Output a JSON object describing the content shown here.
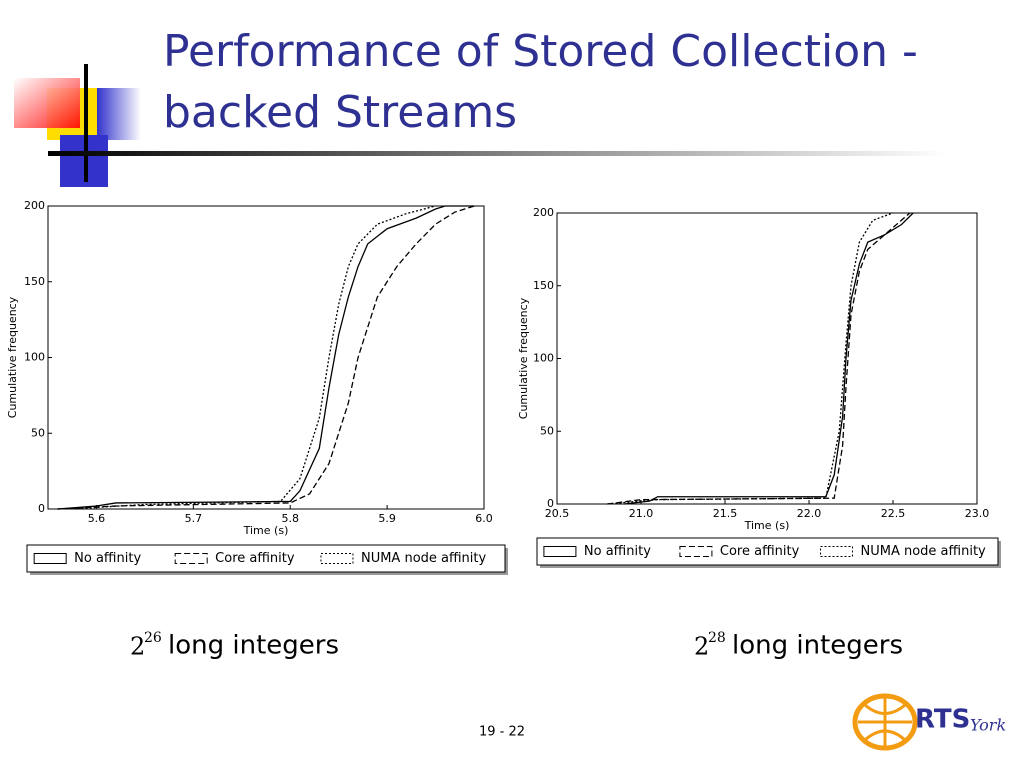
{
  "slide": {
    "title_lines": [
      "Performance of Stored Collection -",
      "backed Streams"
    ],
    "captions": [
      {
        "base": "2",
        "exponent": "26",
        "text": "long integers"
      },
      {
        "base": "2",
        "exponent": "28",
        "text": "long integers"
      }
    ],
    "page_number": "19 - 22",
    "logo": {
      "main": "RTS",
      "sub": "York"
    }
  },
  "chart_data": [
    {
      "type": "line",
      "xlabel": "Time (s)",
      "ylabel": "Cumulative frequency",
      "xlim": [
        5.55,
        6.0
      ],
      "ylim": [
        0,
        200
      ],
      "xticks": [
        5.6,
        5.7,
        5.8,
        5.9,
        {
          "value": 6.0,
          "label": "6.0"
        }
      ],
      "yticks": [
        0,
        50,
        100,
        150,
        200
      ],
      "grid": false,
      "legend": "bottom",
      "series": [
        {
          "name": "No affinity",
          "color": "#000000",
          "dash": "solid",
          "x": [
            5.56,
            5.6,
            5.62,
            5.8,
            5.81,
            5.83,
            5.84,
            5.85,
            5.86,
            5.87,
            5.88,
            5.9,
            5.93,
            5.95,
            5.96,
            5.99
          ],
          "values": [
            0,
            2,
            4,
            5,
            12,
            40,
            80,
            115,
            140,
            160,
            175,
            185,
            192,
            198,
            200,
            200
          ]
        },
        {
          "name": "Core affinity",
          "color": "#000000",
          "dash": "dashed",
          "x": [
            5.56,
            5.62,
            5.8,
            5.82,
            5.84,
            5.86,
            5.87,
            5.89,
            5.91,
            5.93,
            5.95,
            5.97,
            5.99
          ],
          "values": [
            0,
            2,
            4,
            10,
            30,
            70,
            100,
            140,
            160,
            175,
            188,
            196,
            200
          ]
        },
        {
          "name": "NUMA node affinity",
          "color": "#000000",
          "dash": "dotted",
          "x": [
            5.56,
            5.6,
            5.65,
            5.79,
            5.81,
            5.83,
            5.84,
            5.85,
            5.86,
            5.87,
            5.89,
            5.92,
            5.95
          ],
          "values": [
            0,
            1,
            3,
            5,
            20,
            60,
            100,
            135,
            160,
            175,
            188,
            195,
            200
          ]
        }
      ]
    },
    {
      "type": "line",
      "xlabel": "Time (s)",
      "ylabel": "Cumulative frequency",
      "xlim": [
        20.5,
        23.0
      ],
      "ylim": [
        0,
        200
      ],
      "xticks": [
        20.5,
        {
          "value": 21.0,
          "label": "21.0"
        },
        21.5,
        {
          "value": 22.0,
          "label": "22.0"
        },
        22.5,
        {
          "value": 23.0,
          "label": "23.0"
        }
      ],
      "yticks": [
        0,
        50,
        100,
        150,
        200
      ],
      "grid": false,
      "legend": "bottom",
      "series": [
        {
          "name": "No affinity",
          "color": "#000000",
          "dash": "solid",
          "x": [
            20.9,
            21.05,
            21.1,
            22.1,
            22.15,
            22.2,
            22.22,
            22.25,
            22.3,
            22.35,
            22.45,
            22.55,
            22.62
          ],
          "values": [
            0,
            2,
            5,
            5,
            20,
            60,
            100,
            140,
            165,
            180,
            185,
            192,
            200
          ]
        },
        {
          "name": "Core affinity",
          "color": "#000000",
          "dash": "dashed",
          "x": [
            20.8,
            21.0,
            22.15,
            22.2,
            22.22,
            22.25,
            22.3,
            22.35,
            22.5,
            22.6
          ],
          "values": [
            0,
            3,
            4,
            40,
            80,
            130,
            160,
            175,
            190,
            200
          ]
        },
        {
          "name": "NUMA node affinity",
          "color": "#000000",
          "dash": "dotted",
          "x": [
            20.8,
            21.1,
            22.1,
            22.18,
            22.22,
            22.25,
            22.3,
            22.38,
            22.5
          ],
          "values": [
            0,
            3,
            4,
            50,
            110,
            150,
            180,
            195,
            200
          ]
        }
      ]
    }
  ]
}
